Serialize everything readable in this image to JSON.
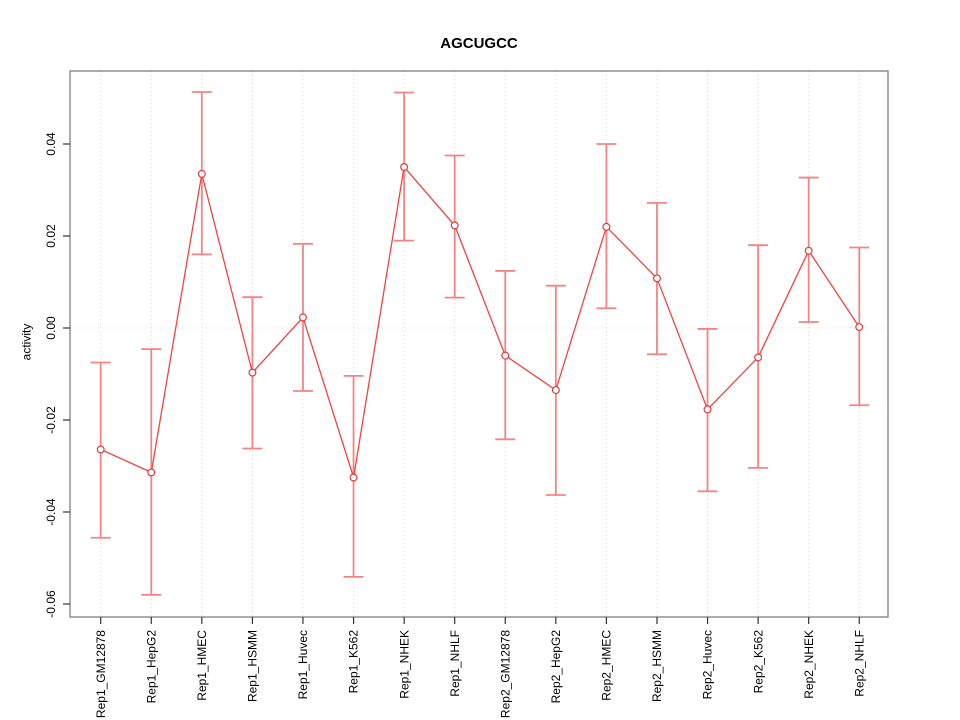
{
  "title": "AGCUGCC",
  "chart_data": {
    "type": "line",
    "title": "AGCUGCC",
    "xlabel": "",
    "ylabel": "activity",
    "categories": [
      "Rep1_GM12878",
      "Rep1_HepG2",
      "Rep1_HMEC",
      "Rep1_HSMM",
      "Rep1_Huvec",
      "Rep1_K562",
      "Rep1_NHEK",
      "Rep1_NHLF",
      "Rep2_GM12878",
      "Rep2_HepG2",
      "Rep2_HMEC",
      "Rep2_HSMM",
      "Rep2_Huvec",
      "Rep2_K562",
      "Rep2_NHEK",
      "Rep2_NHLF"
    ],
    "series": [
      {
        "name": "activity",
        "values": [
          -0.0264,
          -0.0314,
          0.0335,
          -0.0097,
          0.0023,
          -0.0325,
          0.035,
          0.0223,
          -0.006,
          -0.0135,
          0.022,
          0.0108,
          -0.0177,
          -0.0064,
          0.0168,
          0.0002
        ],
        "error_upper": [
          -0.0075,
          -0.0046,
          0.0513,
          0.0067,
          0.0183,
          -0.0104,
          0.0512,
          0.0375,
          0.0124,
          0.0092,
          0.04,
          0.0272,
          -0.0002,
          0.018,
          0.0327,
          0.0175
        ],
        "error_lower": [
          -0.0456,
          -0.058,
          0.016,
          -0.0262,
          -0.0137,
          -0.0541,
          0.019,
          0.0066,
          -0.0242,
          -0.0363,
          0.0043,
          -0.0057,
          -0.0355,
          -0.0304,
          0.0013,
          -0.0168
        ]
      }
    ],
    "yticks": [
      0.04,
      0.02,
      0,
      -0.02,
      -0.04,
      -0.06
    ],
    "ytick_labels": [
      "0.04",
      "0.02",
      "0.00",
      "-0.02",
      "-0.04",
      "-0.06"
    ],
    "ylim": [
      -0.0628,
      0.0559
    ],
    "legend": "none",
    "grid": {
      "vertical_dotted_per_category": true,
      "horizontal_dotted_zero_line": true
    },
    "colors": {
      "series_line": "#ee4444",
      "point_stroke": "#e03c3c",
      "error_bar": "#f48484",
      "grid_line": "#d6d6d6",
      "frame": "#808080",
      "tick": "#333333",
      "text": "#000000",
      "background": "#ffffff"
    }
  }
}
